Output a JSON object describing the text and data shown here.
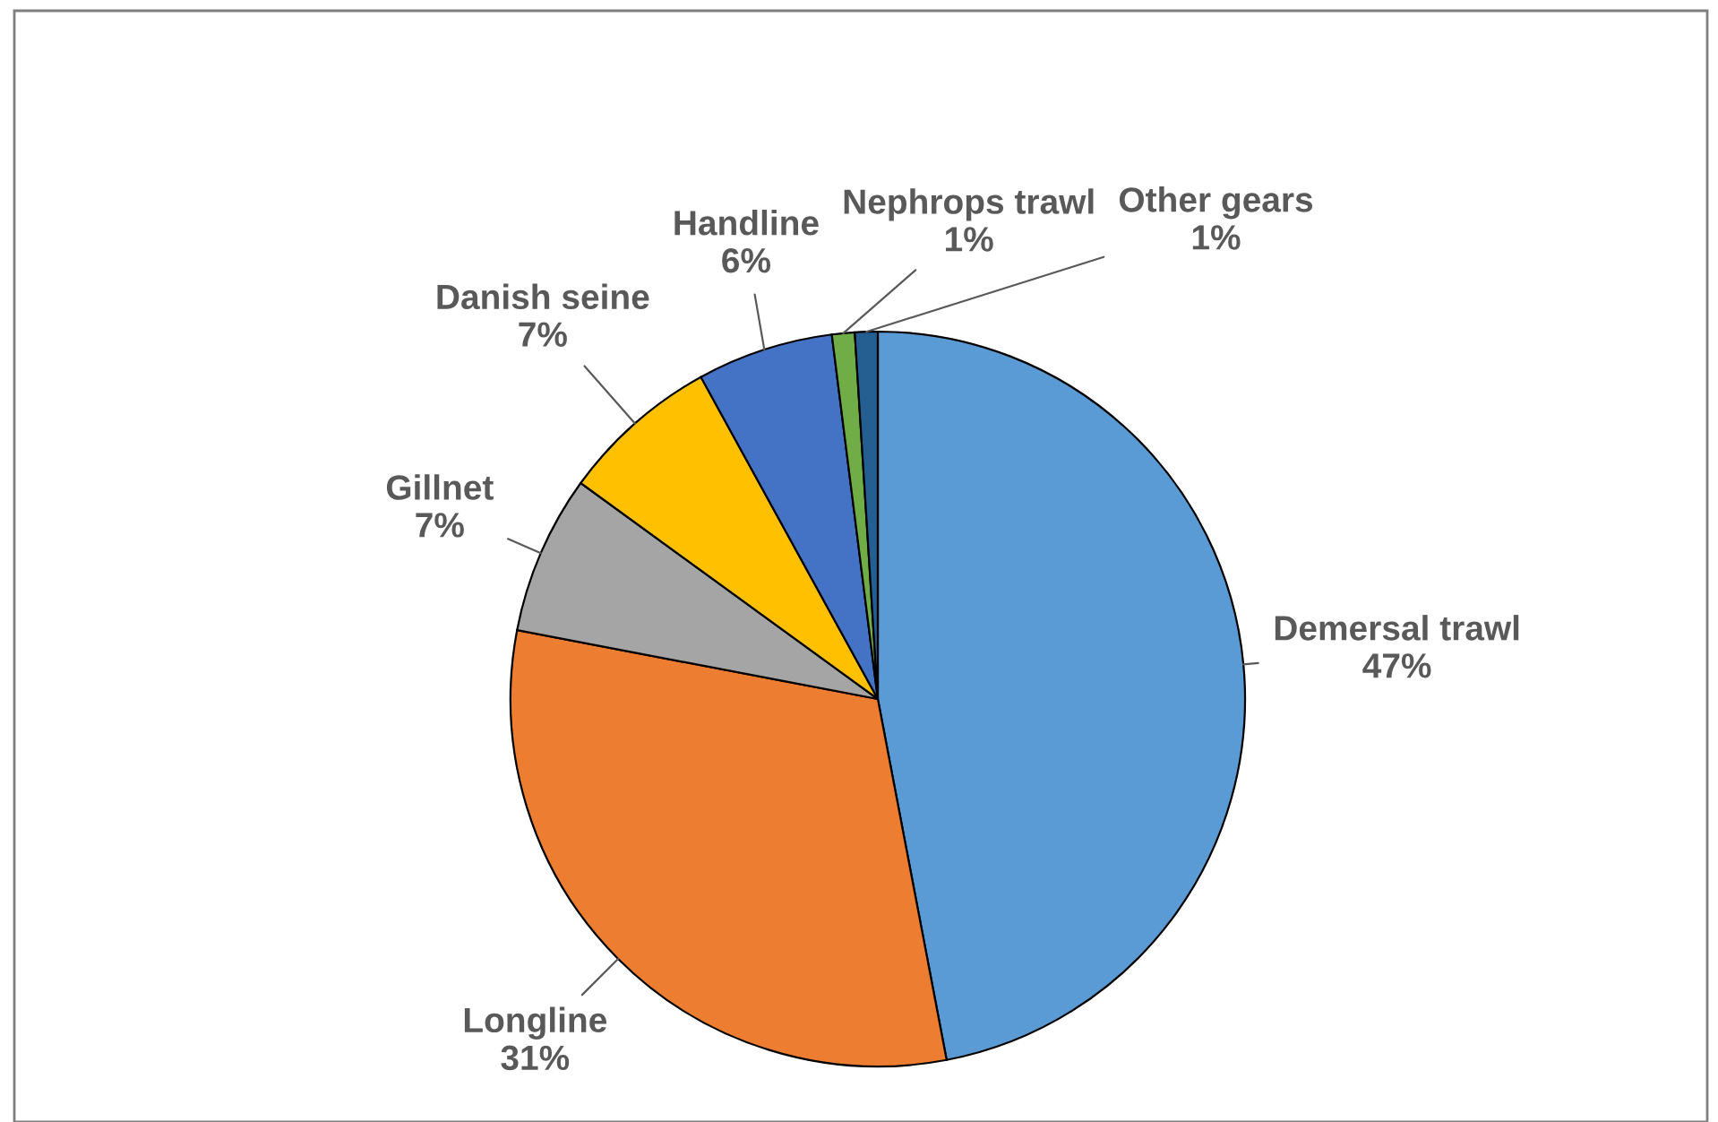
{
  "chart_data": {
    "type": "pie",
    "categories": [
      "Demersal trawl",
      "Longline",
      "Gillnet",
      "Danish seine",
      "Handline",
      "Nephrops trawl",
      "Other gears"
    ],
    "values": [
      47,
      31,
      7,
      7,
      6,
      1,
      1
    ],
    "value_labels": [
      "47%",
      "31%",
      "7%",
      "7%",
      "6%",
      "1%",
      "1%"
    ],
    "colors": [
      "#5b9bd5",
      "#ed7d31",
      "#a5a5a5",
      "#ffc000",
      "#4472c4",
      "#70ad47",
      "#255e91"
    ],
    "legend": false
  }
}
